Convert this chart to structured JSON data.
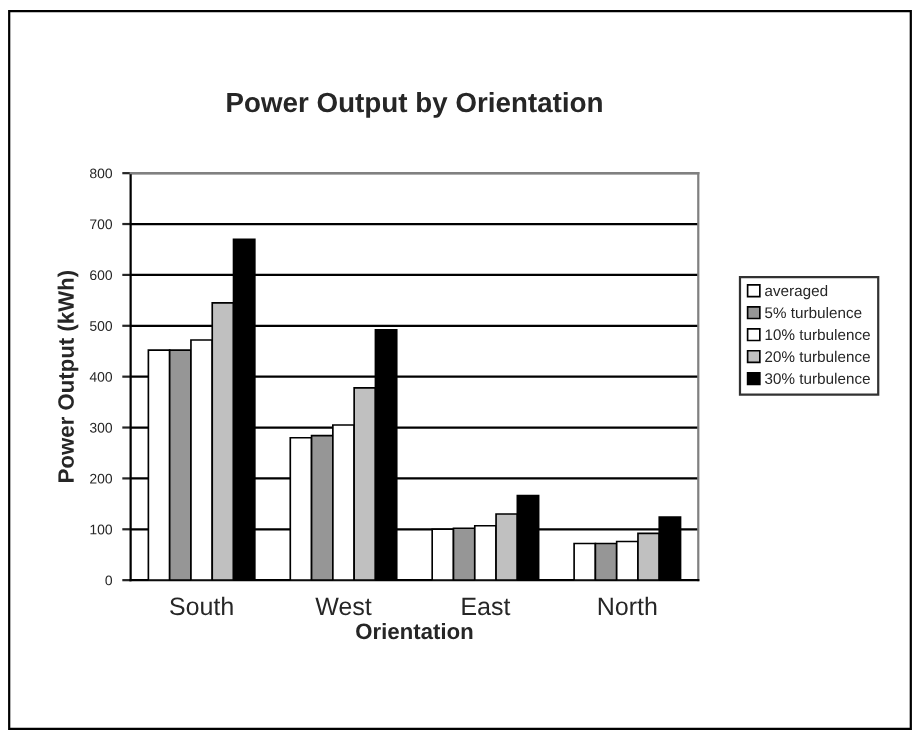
{
  "chart_data": {
    "type": "bar",
    "title": "Power Output by Orientation",
    "xlabel": "Orientation",
    "ylabel": "Power Output (kWh)",
    "categories": [
      "South",
      "West",
      "East",
      "North"
    ],
    "series": [
      {
        "name": "averaged",
        "color": "#ffffff",
        "values": [
          452,
          280,
          100,
          72
        ]
      },
      {
        "name": "5% turbulence",
        "color": "#969696",
        "values": [
          452,
          284,
          102,
          72
        ]
      },
      {
        "name": "10% turbulence",
        "color": "#ffffff",
        "values": [
          472,
          305,
          107,
          76
        ]
      },
      {
        "name": "20% turbulence",
        "color": "#c0c0c0",
        "values": [
          545,
          378,
          130,
          92
        ]
      },
      {
        "name": "30% turbulence",
        "color": "#000000",
        "values": [
          670,
          492,
          166,
          124
        ]
      }
    ],
    "ylim": [
      0,
      800
    ],
    "yticks": [
      0,
      100,
      200,
      300,
      400,
      500,
      600,
      700,
      800
    ],
    "grid": "y",
    "legend": "right"
  }
}
